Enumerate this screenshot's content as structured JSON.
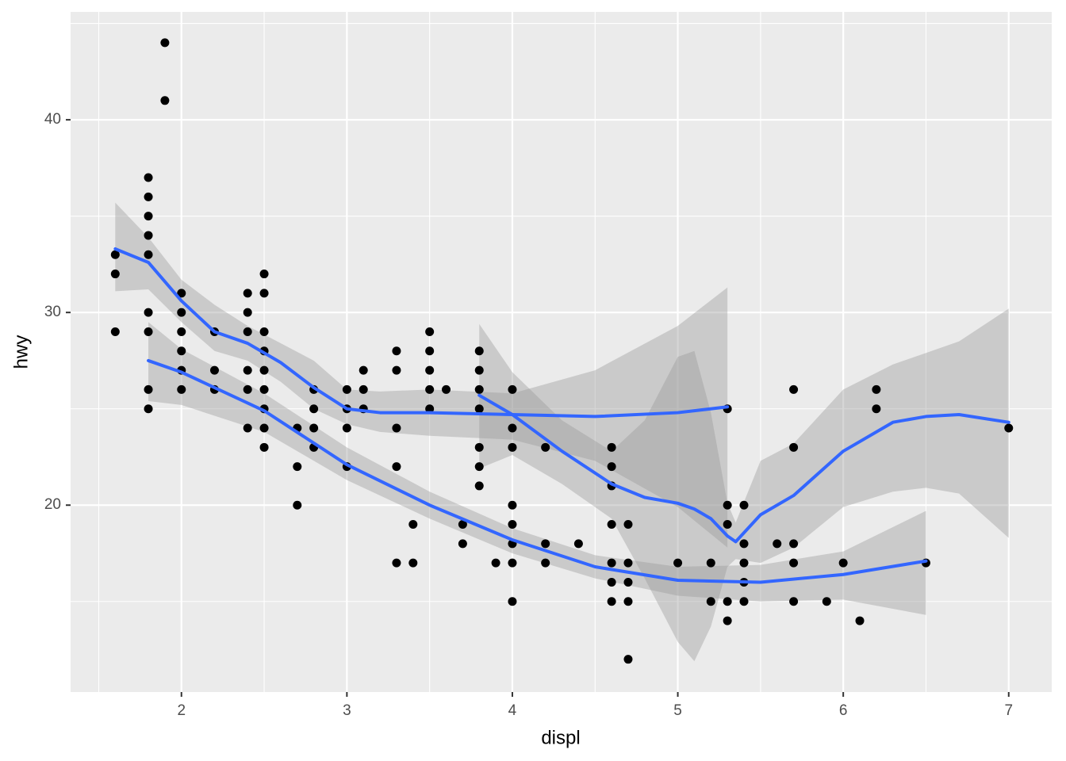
{
  "chart_data": {
    "type": "scatter",
    "xlabel": "displ",
    "ylabel": "hwy",
    "xlim": [
      1.33,
      7.26
    ],
    "ylim": [
      10.3,
      45.6
    ],
    "xticks": [
      2,
      3,
      4,
      5,
      6,
      7
    ],
    "yticks": [
      20,
      30,
      40
    ],
    "x_minor_ticks": [
      1.5,
      2.5,
      3.5,
      4.5,
      5.5,
      6.5
    ],
    "y_minor_ticks": [
      15,
      25,
      35,
      45
    ],
    "grid": true,
    "color": "#000000",
    "x": [
      1.6,
      1.6,
      1.6,
      1.8,
      1.8,
      1.8,
      1.8,
      1.8,
      1.8,
      1.8,
      1.8,
      1.8,
      1.9,
      1.9,
      2,
      2,
      2,
      2,
      2,
      2,
      2.2,
      2.2,
      2.2,
      2.4,
      2.4,
      2.4,
      2.4,
      2.4,
      2.4,
      2.5,
      2.5,
      2.5,
      2.5,
      2.5,
      2.5,
      2.5,
      2.5,
      2.5,
      2.7,
      2.7,
      2.7,
      2.8,
      2.8,
      2.8,
      2.8,
      3,
      3,
      3,
      3,
      3.1,
      3.1,
      3.1,
      3.3,
      3.3,
      3.3,
      3.3,
      3.3,
      3.4,
      3.4,
      3.5,
      3.5,
      3.5,
      3.5,
      3.5,
      3.6,
      3.7,
      3.7,
      3.8,
      3.8,
      3.8,
      3.8,
      3.8,
      3.8,
      3.8,
      3.9,
      4,
      4,
      4,
      4,
      4,
      4,
      4,
      4,
      4.2,
      4.2,
      4.2,
      4.4,
      4.6,
      4.6,
      4.6,
      4.6,
      4.6,
      4.6,
      4.6,
      4.7,
      4.7,
      4.7,
      4.7,
      4.7,
      5,
      5.2,
      5.2,
      5.3,
      5.3,
      5.3,
      5.3,
      5.3,
      5.4,
      5.4,
      5.4,
      5.4,
      5.4,
      5.6,
      5.7,
      5.7,
      5.7,
      5.7,
      5.7,
      5.9,
      6,
      6.1,
      6.2,
      6.2,
      6.5,
      7
    ],
    "y": [
      33,
      32,
      29,
      37,
      36,
      35,
      34,
      33,
      30,
      29,
      26,
      25,
      44,
      41,
      31,
      30,
      29,
      28,
      27,
      26,
      29,
      27,
      26,
      31,
      30,
      29,
      27,
      26,
      24,
      32,
      31,
      29,
      28,
      27,
      26,
      25,
      24,
      23,
      24,
      22,
      20,
      26,
      25,
      24,
      23,
      26,
      25,
      24,
      22,
      27,
      26,
      25,
      28,
      27,
      24,
      22,
      17,
      19,
      17,
      29,
      28,
      27,
      26,
      25,
      26,
      19,
      18,
      28,
      27,
      26,
      25,
      23,
      22,
      21,
      17,
      26,
      24,
      23,
      20,
      19,
      18,
      17,
      15,
      23,
      18,
      17,
      18,
      23,
      22,
      21,
      19,
      17,
      16,
      15,
      19,
      17,
      16,
      15,
      12,
      17,
      17,
      15,
      25,
      20,
      19,
      15,
      14,
      20,
      18,
      17,
      16,
      15,
      18,
      26,
      23,
      18,
      17,
      15,
      15,
      17,
      14,
      26,
      25,
      17,
      24
    ],
    "smooths": [
      {
        "color": "#3366FF",
        "band_color": "#999999",
        "x": [
          1.6,
          1.8,
          2,
          2.2,
          2.4,
          2.6,
          2.8,
          3,
          3.2,
          3.5,
          4,
          4.5,
          5,
          5.3
        ],
        "y": [
          33.3,
          32.6,
          30.6,
          29,
          28.4,
          27.4,
          26.1,
          25,
          24.8,
          24.8,
          24.7,
          24.6,
          24.8,
          25.1
        ],
        "upper": [
          35.7,
          33.9,
          31.7,
          30.4,
          29.3,
          28.4,
          27.5,
          26,
          25.9,
          26,
          25.8,
          27,
          29.3,
          31.3
        ],
        "lower": [
          31.1,
          31.2,
          29.5,
          28,
          27.5,
          26.4,
          25,
          24.2,
          23.8,
          23.6,
          23.4,
          22.3,
          19.9,
          17.8
        ]
      },
      {
        "color": "#3366FF",
        "band_color": "#999999",
        "x": [
          1.8,
          2,
          2.5,
          3,
          3.5,
          4,
          4.5,
          5,
          5.5,
          6,
          6.5
        ],
        "y": [
          27.5,
          26.9,
          24.9,
          22.1,
          20,
          18.2,
          16.8,
          16.1,
          16,
          16.4,
          17.1
        ],
        "upper": [
          29.5,
          28.1,
          25.8,
          23,
          20.7,
          18.8,
          17.4,
          16.8,
          16.9,
          17.6,
          19.7
        ],
        "lower": [
          25.4,
          25.2,
          23.8,
          21.3,
          19.3,
          17.5,
          16.2,
          15.3,
          15,
          15.1,
          14.3
        ]
      },
      {
        "color": "#3366FF",
        "band_color": "#999999",
        "x": [
          3.8,
          4,
          4.3,
          4.6,
          4.8,
          5,
          5.1,
          5.2,
          5.3,
          5.35,
          5.5,
          5.7,
          6,
          6.3,
          6.5,
          6.7,
          7
        ],
        "y": [
          25.7,
          24.7,
          22.8,
          21.1,
          20.4,
          20.1,
          19.8,
          19.3,
          18.4,
          18.1,
          19.5,
          20.5,
          22.8,
          24.3,
          24.6,
          24.7,
          24.3
        ],
        "upper": [
          29.4,
          26.9,
          24.4,
          22.8,
          24.4,
          27.7,
          28,
          24.8,
          20.1,
          19.1,
          22.3,
          23.2,
          26,
          27.3,
          27.9,
          28.5,
          30.2
        ],
        "lower": [
          21.9,
          22.6,
          21.1,
          19.3,
          16.2,
          12.9,
          11.9,
          13.7,
          16.8,
          17.2,
          17,
          17.8,
          19.9,
          20.7,
          20.9,
          20.6,
          18.3
        ]
      }
    ]
  }
}
